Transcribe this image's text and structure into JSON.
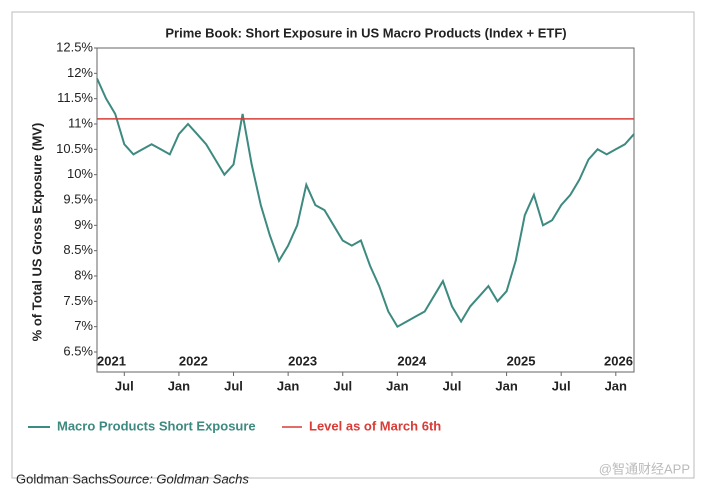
{
  "chart_data": {
    "type": "line",
    "title": "Prime Book: Short Exposure in US Macro Products (Index + ETF)",
    "ylabel": "% of Total US Gross Exposure (MV)",
    "x": [
      "2021-04",
      "2021-05",
      "2021-06",
      "2021-07",
      "2021-08",
      "2021-09",
      "2021-10",
      "2021-11",
      "2021-12",
      "2022-01",
      "2022-02",
      "2022-03",
      "2022-04",
      "2022-05",
      "2022-06",
      "2022-07",
      "2022-08",
      "2022-09",
      "2022-10",
      "2022-11",
      "2022-12",
      "2023-01",
      "2023-02",
      "2023-03",
      "2023-04",
      "2023-05",
      "2023-06",
      "2023-07",
      "2023-08",
      "2023-09",
      "2023-10",
      "2023-11",
      "2023-12",
      "2024-01",
      "2024-02",
      "2024-03",
      "2024-04",
      "2024-05",
      "2024-06",
      "2024-07",
      "2024-08",
      "2024-09",
      "2024-10",
      "2024-11",
      "2024-12",
      "2025-01",
      "2025-02",
      "2025-03",
      "2025-04",
      "2025-05",
      "2025-06",
      "2025-07",
      "2025-08",
      "2025-09",
      "2025-10",
      "2025-11",
      "2025-12",
      "2026-01",
      "2026-02",
      "2026-03"
    ],
    "series": [
      {
        "name": "Macro Products Short Exposure",
        "color": "#3d8a80",
        "values": [
          11.9,
          11.5,
          11.2,
          10.6,
          10.4,
          10.5,
          10.6,
          10.5,
          10.4,
          10.8,
          11.0,
          10.8,
          10.6,
          10.3,
          10.0,
          10.2,
          11.2,
          10.2,
          9.4,
          8.8,
          8.3,
          8.6,
          9.0,
          9.8,
          9.4,
          9.3,
          9.0,
          8.7,
          8.6,
          8.7,
          8.2,
          7.8,
          7.3,
          7.0,
          7.1,
          7.2,
          7.3,
          7.6,
          7.9,
          7.4,
          7.1,
          7.4,
          7.6,
          7.8,
          7.5,
          7.7,
          8.3,
          9.2,
          9.6,
          9.0,
          9.1,
          9.4,
          9.6,
          9.9,
          10.3,
          10.5,
          10.4,
          10.5,
          10.6,
          10.8
        ]
      }
    ],
    "reference_line": {
      "name": "Level as of March 6th",
      "color": "#d93b36",
      "value": 11.1
    },
    "xlim": [
      "2021-04",
      "2026-03"
    ],
    "xticks": [
      {
        "value": "2021-07",
        "label": "Jul"
      },
      {
        "value": "2022-01",
        "label": "Jan"
      },
      {
        "value": "2022-07",
        "label": "Jul"
      },
      {
        "value": "2023-01",
        "label": "Jan"
      },
      {
        "value": "2023-07",
        "label": "Jul"
      },
      {
        "value": "2024-01",
        "label": "Jan"
      },
      {
        "value": "2024-07",
        "label": "Jul"
      },
      {
        "value": "2025-01",
        "label": "Jan"
      },
      {
        "value": "2025-07",
        "label": "Jul"
      },
      {
        "value": "2026-01",
        "label": "Jan"
      }
    ],
    "year_labels": [
      {
        "value": "2021-04",
        "label": "2021"
      },
      {
        "value": "2022-01",
        "label": "2022"
      },
      {
        "value": "2023-01",
        "label": "2023"
      },
      {
        "value": "2024-01",
        "label": "2024"
      },
      {
        "value": "2025-01",
        "label": "2025"
      },
      {
        "value": "2026-01",
        "label": "2026"
      }
    ],
    "ylim": [
      6.5,
      12.5
    ],
    "yticks": [
      {
        "value": 6.5,
        "label": "6.5%"
      },
      {
        "value": 7,
        "label": "7%"
      },
      {
        "value": 7.5,
        "label": "7.5%"
      },
      {
        "value": 8,
        "label": "8%"
      },
      {
        "value": 8.5,
        "label": "8.5%"
      },
      {
        "value": 9,
        "label": "9%"
      },
      {
        "value": 9.5,
        "label": "9.5%"
      },
      {
        "value": 10,
        "label": "10%"
      },
      {
        "value": 10.5,
        "label": "10.5%"
      },
      {
        "value": 11,
        "label": "11%"
      },
      {
        "value": 11.5,
        "label": "11.5%"
      },
      {
        "value": 12,
        "label": "12%"
      },
      {
        "value": 12.5,
        "label": "12.5%"
      }
    ],
    "legend": "bottom",
    "footer": {
      "source_owner": "Goldman Sachs",
      "source": "Source: Goldman Sachs"
    },
    "watermark": "@智通财经APP"
  }
}
